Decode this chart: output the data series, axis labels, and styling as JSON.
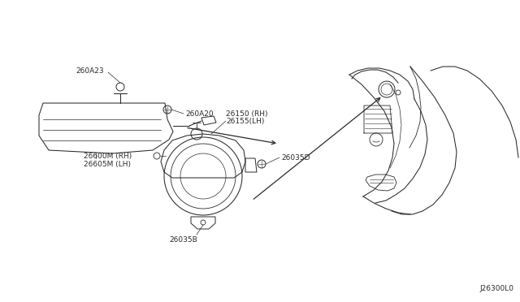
{
  "bg_color": "#ffffff",
  "line_color": "#2a2a2a",
  "text_color": "#2a2a2a",
  "diagram_id": "J26300L0",
  "labels": {
    "lamp_rh": "26600M (RH)",
    "lamp_lh": "26605M (LH)",
    "bracket_260A20": "260A20",
    "bracket_260A23": "260A23",
    "fog_rh": "26150 (RH)",
    "fog_lh": "26155(LH)",
    "bolt_26035D": "26035D",
    "bolt_26035B": "26035B"
  },
  "font_size": 6.5,
  "lw": 0.75
}
